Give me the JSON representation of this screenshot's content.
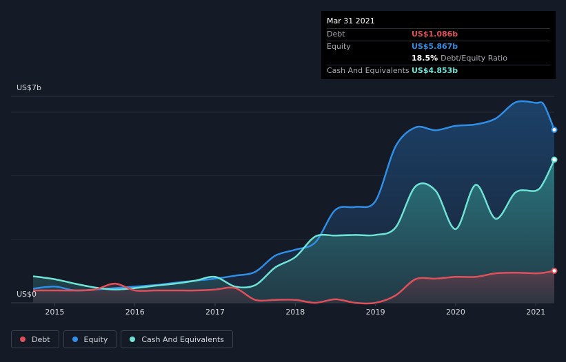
{
  "chart_data": {
    "type": "area",
    "title": "",
    "y_labels": {
      "top": "US$7b",
      "bottom": "US$0"
    },
    "ylim": [
      0,
      7
    ],
    "xlim": [
      2014.73,
      2021.23
    ],
    "x_ticks": [
      "2015",
      "2016",
      "2017",
      "2018",
      "2019",
      "2020",
      "2021"
    ],
    "series": [
      {
        "name": "Equity",
        "color": "#2f8ee6",
        "x": [
          2014.73,
          2015.0,
          2015.25,
          2015.5,
          2015.75,
          2016.0,
          2016.25,
          2016.5,
          2016.75,
          2017.0,
          2017.25,
          2017.5,
          2017.75,
          2018.0,
          2018.25,
          2018.5,
          2018.75,
          2019.0,
          2019.25,
          2019.5,
          2019.75,
          2020.0,
          2020.25,
          2020.5,
          2020.75,
          2021.0,
          2021.1,
          2021.23
        ],
        "values": [
          0.48,
          0.55,
          0.42,
          0.45,
          0.5,
          0.55,
          0.6,
          0.68,
          0.75,
          0.82,
          0.92,
          1.05,
          1.6,
          1.8,
          2.05,
          3.15,
          3.25,
          3.45,
          5.3,
          5.95,
          5.85,
          6.0,
          6.05,
          6.25,
          6.8,
          6.78,
          6.72,
          5.867
        ]
      },
      {
        "name": "Cash And Equivalents",
        "color": "#6fe3d6",
        "x": [
          2014.73,
          2015.0,
          2015.25,
          2015.5,
          2015.75,
          2016.0,
          2016.25,
          2016.5,
          2016.75,
          2017.0,
          2017.25,
          2017.5,
          2017.75,
          2018.0,
          2018.25,
          2018.5,
          2018.75,
          2019.0,
          2019.25,
          2019.5,
          2019.75,
          2020.0,
          2020.25,
          2020.5,
          2020.75,
          2021.0,
          2021.1,
          2021.23
        ],
        "values": [
          0.9,
          0.8,
          0.65,
          0.52,
          0.45,
          0.5,
          0.58,
          0.65,
          0.75,
          0.88,
          0.55,
          0.6,
          1.2,
          1.55,
          2.25,
          2.28,
          2.3,
          2.3,
          2.55,
          3.95,
          3.8,
          2.5,
          4.0,
          2.85,
          3.75,
          3.8,
          4.1,
          4.853
        ]
      },
      {
        "name": "Debt",
        "color": "#e0505b",
        "x": [
          2014.73,
          2015.0,
          2015.25,
          2015.5,
          2015.75,
          2016.0,
          2016.25,
          2016.5,
          2016.75,
          2017.0,
          2017.25,
          2017.5,
          2017.75,
          2018.0,
          2018.25,
          2018.5,
          2018.75,
          2019.0,
          2019.25,
          2019.5,
          2019.75,
          2020.0,
          2020.25,
          2020.5,
          2020.75,
          2021.0,
          2021.1,
          2021.23
        ],
        "values": [
          0.42,
          0.42,
          0.42,
          0.45,
          0.65,
          0.42,
          0.42,
          0.42,
          0.42,
          0.45,
          0.5,
          0.1,
          0.1,
          0.1,
          0.0,
          0.12,
          0.0,
          0.0,
          0.25,
          0.8,
          0.82,
          0.88,
          0.88,
          1.0,
          1.02,
          1.0,
          1.02,
          1.086
        ]
      }
    ]
  },
  "tooltip": {
    "date": "Mar 31 2021",
    "rows": [
      {
        "label": "Debt",
        "value": "US$1.086b",
        "color": "#e0505b"
      },
      {
        "label": "Equity",
        "value": "US$5.867b",
        "color": "#2f8ee6"
      }
    ],
    "ratio_value": "18.5%",
    "ratio_label": "Debt/Equity Ratio",
    "cash_label": "Cash And Equivalents",
    "cash_value": "US$4.853b",
    "cash_color": "#6fe3d6"
  },
  "legend": [
    {
      "label": "Debt",
      "color": "#e0505b"
    },
    {
      "label": "Equity",
      "color": "#2f8ee6"
    },
    {
      "label": "Cash And Equivalents",
      "color": "#6fe3d6"
    }
  ]
}
